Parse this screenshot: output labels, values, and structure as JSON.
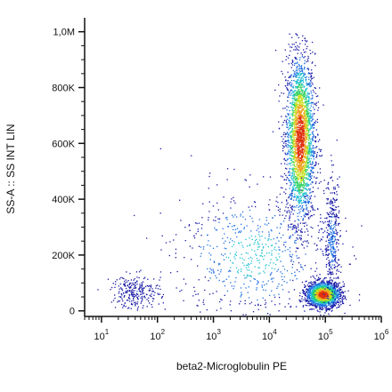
{
  "chart_data": {
    "type": "scatter",
    "title": "",
    "xlabel": "beta2-Microglobulin PE",
    "ylabel": "SS-A :: SS INT LIN",
    "x_scale": "log",
    "x_range": [
      5,
      1000000
    ],
    "y_scale": "linear",
    "y_range": [
      -20000,
      1050000
    ],
    "x_ticks": [
      {
        "value": 10,
        "base": "10",
        "exp": "1"
      },
      {
        "value": 100,
        "base": "10",
        "exp": "2"
      },
      {
        "value": 1000,
        "base": "10",
        "exp": "3"
      },
      {
        "value": 10000,
        "base": "10",
        "exp": "4"
      },
      {
        "value": 100000,
        "base": "10",
        "exp": "5"
      },
      {
        "value": 1000000,
        "base": "10",
        "exp": "6"
      }
    ],
    "y_ticks": [
      {
        "value": 0,
        "label": "0"
      },
      {
        "value": 200000,
        "label": "200K"
      },
      {
        "value": 400000,
        "label": "400K"
      },
      {
        "value": 600000,
        "label": "600K"
      },
      {
        "value": 800000,
        "label": "800K"
      },
      {
        "value": 1000000,
        "label": "1,0M"
      }
    ],
    "grid": false,
    "density_colormap": [
      "#1a1aa6",
      "#1f6fe0",
      "#20c0d0",
      "#30d060",
      "#c8e020",
      "#f0a020",
      "#e03010"
    ],
    "populations": [
      {
        "center_x": 35000,
        "center_y": 620000,
        "spread_log_x": 0.13,
        "spread_y": 150000,
        "count": 2600
      },
      {
        "center_x": 90000,
        "center_y": 60000,
        "spread_log_x": 0.15,
        "spread_y": 22000,
        "count": 1900
      },
      {
        "center_x": 130000,
        "center_y": 250000,
        "spread_log_x": 0.07,
        "spread_y": 110000,
        "count": 380
      },
      {
        "center_x": 40,
        "center_y": 70000,
        "spread_log_x": 0.22,
        "spread_y": 30000,
        "count": 260
      },
      {
        "center_x": 5000,
        "center_y": 200000,
        "spread_log_x": 0.7,
        "spread_y": 120000,
        "count": 650
      }
    ]
  }
}
